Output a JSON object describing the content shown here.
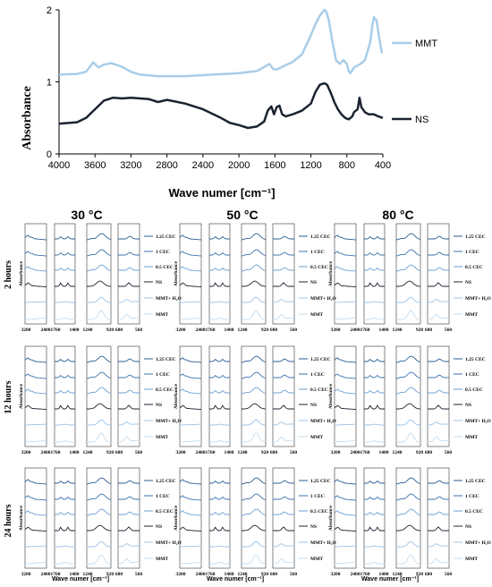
{
  "main_chart": {
    "xlabel": "Wave numer [cm⁻¹]",
    "ylabel": "Absorbance",
    "xlim": [
      4000,
      400
    ],
    "ylim": [
      0,
      2
    ],
    "xticks": [
      "4000",
      "3600",
      "3200",
      "2800",
      "2400",
      "2000",
      "1600",
      "1200",
      "800",
      "400"
    ],
    "yticks": [
      "0",
      "1",
      "2"
    ],
    "legend": [
      "MMT",
      "NS"
    ],
    "colors": {
      "MMT": "#a8cde8",
      "NS": "#1b2330"
    }
  },
  "chart_data": [
    {
      "type": "line",
      "xlabel": "Wave numer [cm⁻¹]",
      "ylabel": "Absorbance",
      "xlim": [
        4000,
        400
      ],
      "ylim": [
        0,
        2
      ],
      "grid": false,
      "legend_position": "right",
      "series": [
        {
          "name": "MMT",
          "x": [
            4000,
            3800,
            3700,
            3620,
            3560,
            3500,
            3420,
            3300,
            3200,
            3100,
            2900,
            2600,
            2300,
            2000,
            1800,
            1660,
            1620,
            1580,
            1500,
            1400,
            1300,
            1200,
            1150,
            1100,
            1050,
            1030,
            1000,
            960,
            920,
            880,
            840,
            800,
            780,
            760,
            720,
            690,
            650,
            600,
            540,
            520,
            500,
            470,
            440,
            410
          ],
          "y": [
            1.1,
            1.11,
            1.14,
            1.27,
            1.2,
            1.24,
            1.26,
            1.21,
            1.14,
            1.1,
            1.08,
            1.08,
            1.1,
            1.12,
            1.15,
            1.25,
            1.18,
            1.17,
            1.22,
            1.28,
            1.38,
            1.65,
            1.8,
            1.92,
            2.0,
            1.98,
            1.85,
            1.55,
            1.3,
            1.25,
            1.3,
            1.25,
            1.15,
            1.12,
            1.2,
            1.22,
            1.25,
            1.3,
            1.55,
            1.75,
            1.9,
            1.85,
            1.6,
            1.4
          ]
        },
        {
          "name": "NS",
          "x": [
            4000,
            3800,
            3700,
            3600,
            3500,
            3400,
            3300,
            3200,
            3000,
            2900,
            2800,
            2600,
            2400,
            2200,
            2100,
            2000,
            1900,
            1800,
            1720,
            1680,
            1640,
            1610,
            1580,
            1550,
            1520,
            1480,
            1400,
            1300,
            1200,
            1150,
            1100,
            1050,
            1020,
            980,
            940,
            900,
            860,
            820,
            780,
            760,
            740,
            720,
            700,
            680,
            660,
            640,
            600,
            560,
            500,
            450,
            400
          ],
          "y": [
            0.42,
            0.44,
            0.5,
            0.62,
            0.74,
            0.78,
            0.77,
            0.78,
            0.76,
            0.72,
            0.75,
            0.7,
            0.62,
            0.5,
            0.43,
            0.4,
            0.36,
            0.38,
            0.45,
            0.6,
            0.66,
            0.55,
            0.65,
            0.67,
            0.55,
            0.52,
            0.55,
            0.6,
            0.7,
            0.86,
            0.96,
            0.98,
            0.96,
            0.85,
            0.72,
            0.62,
            0.55,
            0.5,
            0.48,
            0.5,
            0.52,
            0.58,
            0.6,
            0.62,
            0.78,
            0.65,
            0.58,
            0.55,
            0.55,
            0.52,
            0.5
          ]
        }
      ]
    },
    {
      "type": "line",
      "description_labels": {
        "columns": [
          "30 °C",
          "50 °C",
          "80 °C"
        ],
        "rows": [
          "2 hours",
          "12 hours",
          "24 hours"
        ],
        "ylabel": "Absorbance",
        "xlabel": "Wave numer [cm⁻¹]",
        "panel_ticks": [
          "3200",
          "2400",
          "1760",
          "1400",
          "1240",
          "920",
          "680",
          "560"
        ],
        "traces": [
          "1.25 CEC",
          "1 CEC",
          "0.5 CEC",
          "NS",
          "MMT+ H₂O",
          "MMT"
        ]
      },
      "trace_colors": [
        "#2a5d92",
        "#3b72ad",
        "#6d9fd2",
        "#1b2330",
        "#9cc3e6",
        "#c4dcef"
      ]
    }
  ]
}
